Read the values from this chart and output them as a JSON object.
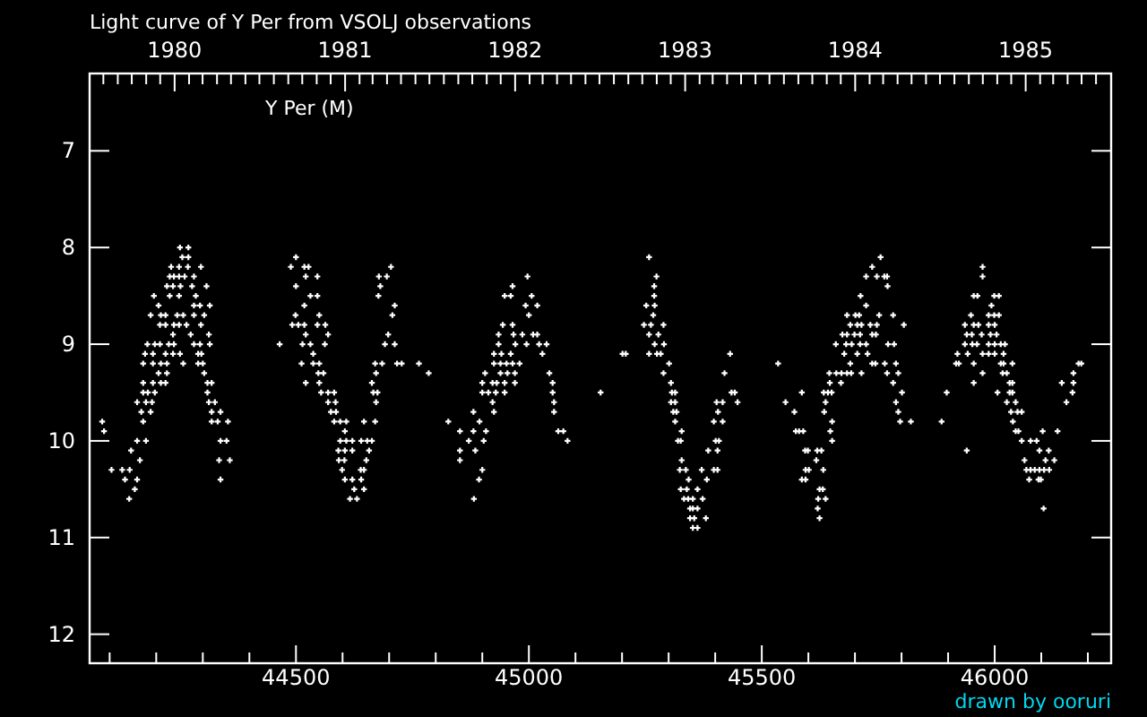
{
  "chart_data": {
    "type": "scatter",
    "title": "Light curve of Y Per from VSOLJ observations",
    "annotations": [
      "drawn by ooruri"
    ],
    "xlim": [
      44057,
      46250
    ],
    "xticks": [
      {
        "value": 44100,
        "label": null
      },
      {
        "value": 44200,
        "label": null
      },
      {
        "value": 44300,
        "label": null
      },
      {
        "value": 44400,
        "label": null
      },
      44500,
      {
        "value": 44600,
        "label": null
      },
      {
        "value": 44700,
        "label": null
      },
      {
        "value": 44800,
        "label": null
      },
      {
        "value": 44900,
        "label": null
      },
      45000,
      {
        "value": 45100,
        "label": null
      },
      {
        "value": 45200,
        "label": null
      },
      {
        "value": 45300,
        "label": null
      },
      {
        "value": 45400,
        "label": null
      },
      45500,
      {
        "value": 45600,
        "label": null
      },
      {
        "value": 45700,
        "label": null
      },
      {
        "value": 45800,
        "label": null
      },
      {
        "value": 45900,
        "label": null
      },
      46000,
      {
        "value": 46100,
        "label": null
      },
      {
        "value": 46200,
        "label": null
      }
    ],
    "x2lim": [
      "1979-07-02T12:00",
      "1985-07-03T12:00"
    ],
    "x2ticks": [
      {
        "value": "1979-08",
        "label": null
      },
      {
        "value": "1979-09",
        "label": null
      },
      {
        "value": "1979-10",
        "label": null
      },
      {
        "value": "1979-11",
        "label": null
      },
      {
        "value": "1979-12",
        "label": null
      },
      "1980",
      {
        "value": "1980-02",
        "label": null
      },
      {
        "value": "1980-03",
        "label": null
      },
      {
        "value": "1980-04",
        "label": null
      },
      {
        "value": "1980-05",
        "label": null
      },
      {
        "value": "1980-06",
        "label": null
      },
      {
        "value": "1980-07",
        "label": null
      },
      {
        "value": "1980-08",
        "label": null
      },
      {
        "value": "1980-09",
        "label": null
      },
      {
        "value": "1980-10",
        "label": null
      },
      {
        "value": "1980-11",
        "label": null
      },
      {
        "value": "1980-12",
        "label": null
      },
      "1981",
      {
        "value": "1981-02",
        "label": null
      },
      {
        "value": "1981-03",
        "label": null
      },
      {
        "value": "1981-04",
        "label": null
      },
      {
        "value": "1981-05",
        "label": null
      },
      {
        "value": "1981-06",
        "label": null
      },
      {
        "value": "1981-07",
        "label": null
      },
      {
        "value": "1981-08",
        "label": null
      },
      {
        "value": "1981-09",
        "label": null
      },
      {
        "value": "1981-10",
        "label": null
      },
      {
        "value": "1981-11",
        "label": null
      },
      {
        "value": "1981-12",
        "label": null
      },
      "1982",
      {
        "value": "1982-02",
        "label": null
      },
      {
        "value": "1982-03",
        "label": null
      },
      {
        "value": "1982-04",
        "label": null
      },
      {
        "value": "1982-05",
        "label": null
      },
      {
        "value": "1982-06",
        "label": null
      },
      {
        "value": "1982-07",
        "label": null
      },
      {
        "value": "1982-08",
        "label": null
      },
      {
        "value": "1982-09",
        "label": null
      },
      {
        "value": "1982-10",
        "label": null
      },
      {
        "value": "1982-11",
        "label": null
      },
      {
        "value": "1982-12",
        "label": null
      },
      "1983",
      {
        "value": "1983-02",
        "label": null
      },
      {
        "value": "1983-03",
        "label": null
      },
      {
        "value": "1983-04",
        "label": null
      },
      {
        "value": "1983-05",
        "label": null
      },
      {
        "value": "1983-06",
        "label": null
      },
      {
        "value": "1983-07",
        "label": null
      },
      {
        "value": "1983-08",
        "label": null
      },
      {
        "value": "1983-09",
        "label": null
      },
      {
        "value": "1983-10",
        "label": null
      },
      {
        "value": "1983-11",
        "label": null
      },
      {
        "value": "1983-12",
        "label": null
      },
      "1984",
      {
        "value": "1984-02",
        "label": null
      },
      {
        "value": "1984-03",
        "label": null
      },
      {
        "value": "1984-04",
        "label": null
      },
      {
        "value": "1984-05",
        "label": null
      },
      {
        "value": "1984-06",
        "label": null
      },
      {
        "value": "1984-07",
        "label": null
      },
      {
        "value": "1984-08",
        "label": null
      },
      {
        "value": "1984-09",
        "label": null
      },
      {
        "value": "1984-10",
        "label": null
      },
      {
        "value": "1984-11",
        "label": null
      },
      {
        "value": "1984-12",
        "label": null
      },
      "1985",
      {
        "value": "1985-02",
        "label": null
      },
      {
        "value": "1985-03",
        "label": null
      },
      {
        "value": "1985-04",
        "label": null
      },
      {
        "value": "1985-05",
        "label": null
      },
      {
        "value": "1985-06",
        "label": null
      }
    ],
    "ylim": [
      12.3,
      6.2
    ],
    "yticks": [
      7,
      8,
      9,
      10,
      11,
      12
    ],
    "marker": "cross",
    "legend": "top left",
    "series": [
      {
        "name": "Y Per (M)",
        "color": "#ffffff",
        "x": [
          44251,
          44269,
          44256,
          44269,
          44500,
          45258,
          45755,
          44232,
          44249,
          44268,
          44296,
          44489,
          44518,
          44527,
          44704,
          45737,
          45974,
          44229,
          44238,
          44249,
          44261,
          44281,
          44521,
          44546,
          44678,
          44695,
          44997,
          45274,
          45724,
          45747,
          45763,
          45769,
          45974,
          44223,
          44236,
          44252,
          44277,
          44308,
          44500,
          44681,
          44965,
          45269,
          45770,
          44195,
          44229,
          44249,
          44285,
          44531,
          44546,
          44677,
          44948,
          44961,
          45006,
          45269,
          45712,
          45955,
          45963,
          45999,
          46009,
          44205,
          44281,
          44294,
          44315,
          44518,
          44712,
          44993,
          45018,
          45252,
          45270,
          45724,
          45993,
          44188,
          44210,
          44220,
          44245,
          44258,
          44281,
          44303,
          44499,
          44550,
          44707,
          45000,
          45267,
          45683,
          45701,
          45709,
          45752,
          45782,
          45949,
          45987,
          45999,
          46009,
          44208,
          44220,
          44238,
          44249,
          44265,
          44296,
          44492,
          44505,
          44518,
          44546,
          44563,
          44944,
          44965,
          45247,
          45262,
          45289,
          45690,
          45705,
          45714,
          45733,
          45747,
          45805,
          45936,
          45955,
          45965,
          45987,
          46000,
          44236,
          44274,
          44313,
          44521,
          44569,
          44698,
          44935,
          44967,
          44986,
          45009,
          45018,
          45258,
          45278,
          45673,
          45683,
          45699,
          45711,
          45737,
          45745,
          45940,
          45951,
          45972,
          45991,
          46004,
          44181,
          44197,
          44208,
          44227,
          44238,
          44281,
          44294,
          44315,
          44465,
          44514,
          44531,
          44562,
          44691,
          44712,
          44935,
          44971,
          44995,
          45022,
          45038,
          45270,
          45290,
          45659,
          45681,
          45693,
          45711,
          45724,
          45771,
          45784,
          45936,
          45952,
          45962,
          45987,
          46000,
          46013,
          46022,
          44176,
          44193,
          44220,
          44236,
          44251,
          44290,
          44297,
          44537,
          44925,
          44941,
          44961,
          45029,
          45201,
          45208,
          45258,
          45275,
          45283,
          45432,
          45677,
          45705,
          45727,
          45920,
          45942,
          45974,
          45987,
          46000,
          46019,
          44172,
          44193,
          44210,
          44223,
          44258,
          44290,
          44300,
          44512,
          44537,
          44550,
          44670,
          44685,
          44717,
          44727,
          44764,
          44925,
          44939,
          44952,
          44965,
          44980,
          45301,
          45535,
          45690,
          45737,
          45744,
          45764,
          45788,
          45917,
          45923,
          45955,
          46013,
          46019,
          46038,
          46180,
          46186,
          44205,
          44223,
          44303,
          44548,
          44559,
          44672,
          44785,
          44906,
          44939,
          44954,
          44970,
          45044,
          45289,
          45420,
          45645,
          45660,
          45671,
          45683,
          45692,
          45714,
          45769,
          45793,
          45974,
          46017,
          46026,
          46169,
          44172,
          44193,
          44210,
          44220,
          44310,
          44319,
          44521,
          44550,
          44663,
          44900,
          44922,
          44931,
          44948,
          44970,
          45051,
          45305,
          45646,
          45670,
          45782,
          45955,
          46032,
          46038,
          46144,
          46169,
          44172,
          44182,
          44197,
          44310,
          44554,
          44569,
          44582,
          44666,
          44675,
          44900,
          44913,
          44929,
          44948,
          45051,
          45154,
          45307,
          45314,
          45435,
          45442,
          45586,
          45633,
          45642,
          45650,
          45801,
          45897,
          46006,
          46032,
          46038,
          46167,
          44159,
          44178,
          44191,
          44313,
          44326,
          44569,
          44585,
          44672,
          44922,
          45054,
          45305,
          45314,
          45403,
          45416,
          45448,
          45551,
          45637,
          45788,
          46026,
          46045,
          46154,
          44168,
          44188,
          44319,
          44338,
          44575,
          44586,
          44881,
          44925,
          45054,
          45310,
          45317,
          45406,
          45570,
          45634,
          45793,
          46035,
          46049,
          46058,
          44084,
          44172,
          44319,
          44332,
          44354,
          44582,
          44595,
          44608,
          44646,
          44670,
          44827,
          44894,
          45314,
          45397,
          45416,
          45651,
          45797,
          45820,
          45886,
          46039,
          44088,
          44605,
          44852,
          44881,
          44908,
          45063,
          45074,
          45328,
          45573,
          45580,
          45589,
          45647,
          46045,
          46051,
          46103,
          46135,
          44159,
          44178,
          44338,
          44351,
          44595,
          44608,
          44621,
          44640,
          44653,
          44663,
          44871,
          44903,
          45083,
          45320,
          45326,
          45401,
          45408,
          45651,
          46058,
          46077,
          46090,
          44146,
          44591,
          44605,
          44621,
          44657,
          44852,
          44885,
          45385,
          45405,
          45593,
          45599,
          45619,
          45628,
          45940,
          46096,
          46116,
          44165,
          44335,
          44358,
          44592,
          44604,
          44651,
          44852,
          45328,
          45617,
          46064,
          46109,
          46128,
          44104,
          44127,
          44143,
          44599,
          44639,
          44646,
          44900,
          45324,
          45337,
          45371,
          45397,
          45405,
          45594,
          45601,
          45632,
          46068,
          46077,
          46086,
          46096,
          46106,
          46117,
          44133,
          44159,
          44338,
          44605,
          44621,
          44640,
          44893,
          45343,
          45382,
          45586,
          45594,
          46074,
          46094,
          46099,
          44154,
          44625,
          44646,
          45326,
          45339,
          45362,
          45624,
          45631,
          44142,
          44616,
          44631,
          44882,
          45333,
          45342,
          45352,
          45373,
          45621,
          45637,
          45346,
          45352,
          45362,
          45620,
          46105,
          45346,
          45355,
          45380,
          45624,
          45352,
          45362
        ],
        "values": [
          8,
          8,
          8.1,
          8.1,
          8.1,
          8.1,
          8.1,
          8.2,
          8.2,
          8.2,
          8.2,
          8.2,
          8.2,
          8.2,
          8.2,
          8.2,
          8.2,
          8.3,
          8.3,
          8.3,
          8.3,
          8.3,
          8.3,
          8.3,
          8.3,
          8.3,
          8.3,
          8.3,
          8.3,
          8.3,
          8.3,
          8.3,
          8.3,
          8.4,
          8.4,
          8.4,
          8.4,
          8.4,
          8.4,
          8.4,
          8.4,
          8.4,
          8.4,
          8.5,
          8.5,
          8.5,
          8.5,
          8.5,
          8.5,
          8.5,
          8.5,
          8.5,
          8.5,
          8.5,
          8.5,
          8.5,
          8.5,
          8.5,
          8.5,
          8.6,
          8.6,
          8.6,
          8.6,
          8.6,
          8.6,
          8.6,
          8.6,
          8.6,
          8.6,
          8.6,
          8.6,
          8.7,
          8.7,
          8.7,
          8.7,
          8.7,
          8.7,
          8.7,
          8.7,
          8.7,
          8.7,
          8.7,
          8.7,
          8.7,
          8.7,
          8.7,
          8.7,
          8.7,
          8.7,
          8.7,
          8.7,
          8.7,
          8.8,
          8.8,
          8.8,
          8.8,
          8.8,
          8.8,
          8.8,
          8.8,
          8.8,
          8.8,
          8.8,
          8.8,
          8.8,
          8.8,
          8.8,
          8.8,
          8.8,
          8.8,
          8.8,
          8.8,
          8.8,
          8.8,
          8.8,
          8.8,
          8.8,
          8.8,
          8.8,
          8.9,
          8.9,
          8.9,
          8.9,
          8.9,
          8.9,
          8.9,
          8.9,
          8.9,
          8.9,
          8.9,
          8.9,
          8.9,
          8.9,
          8.9,
          8.9,
          8.9,
          8.9,
          8.9,
          8.9,
          8.9,
          8.9,
          8.9,
          8.9,
          9,
          9,
          9,
          9,
          9,
          9,
          9,
          9,
          9,
          9,
          9,
          9,
          9,
          9,
          9,
          9,
          9,
          9,
          9,
          9,
          9,
          9,
          9,
          9,
          9,
          9,
          9,
          9,
          9,
          9,
          9,
          9,
          9,
          9,
          9,
          9.1,
          9.1,
          9.1,
          9.1,
          9.1,
          9.1,
          9.1,
          9.1,
          9.1,
          9.1,
          9.1,
          9.1,
          9.1,
          9.1,
          9.1,
          9.1,
          9.1,
          9.1,
          9.1,
          9.1,
          9.1,
          9.1,
          9.1,
          9.1,
          9.1,
          9.1,
          9.1,
          9.2,
          9.2,
          9.2,
          9.2,
          9.2,
          9.2,
          9.2,
          9.2,
          9.2,
          9.2,
          9.2,
          9.2,
          9.2,
          9.2,
          9.2,
          9.2,
          9.2,
          9.2,
          9.2,
          9.2,
          9.2,
          9.2,
          9.2,
          9.2,
          9.2,
          9.2,
          9.2,
          9.2,
          9.2,
          9.2,
          9.2,
          9.2,
          9.2,
          9.2,
          9.2,
          9.3,
          9.3,
          9.3,
          9.3,
          9.3,
          9.3,
          9.3,
          9.3,
          9.3,
          9.3,
          9.3,
          9.3,
          9.3,
          9.3,
          9.3,
          9.3,
          9.3,
          9.3,
          9.3,
          9.3,
          9.3,
          9.3,
          9.3,
          9.3,
          9.3,
          9.3,
          9.4,
          9.4,
          9.4,
          9.4,
          9.4,
          9.4,
          9.4,
          9.4,
          9.4,
          9.4,
          9.4,
          9.4,
          9.4,
          9.4,
          9.4,
          9.4,
          9.4,
          9.4,
          9.4,
          9.4,
          9.4,
          9.4,
          9.4,
          9.4,
          9.5,
          9.5,
          9.5,
          9.5,
          9.5,
          9.5,
          9.5,
          9.5,
          9.5,
          9.5,
          9.5,
          9.5,
          9.5,
          9.5,
          9.5,
          9.5,
          9.5,
          9.5,
          9.5,
          9.5,
          9.5,
          9.5,
          9.5,
          9.5,
          9.5,
          9.5,
          9.5,
          9.5,
          9.5,
          9.6,
          9.6,
          9.6,
          9.6,
          9.6,
          9.6,
          9.6,
          9.6,
          9.6,
          9.6,
          9.6,
          9.6,
          9.6,
          9.6,
          9.6,
          9.6,
          9.6,
          9.6,
          9.6,
          9.6,
          9.6,
          9.7,
          9.7,
          9.7,
          9.7,
          9.7,
          9.7,
          9.7,
          9.7,
          9.7,
          9.7,
          9.7,
          9.7,
          9.7,
          9.7,
          9.7,
          9.7,
          9.7,
          9.7,
          9.8,
          9.8,
          9.8,
          9.8,
          9.8,
          9.8,
          9.8,
          9.8,
          9.8,
          9.8,
          9.8,
          9.8,
          9.8,
          9.8,
          9.8,
          9.8,
          9.8,
          9.8,
          9.8,
          9.8,
          9.9,
          9.9,
          9.9,
          9.9,
          9.9,
          9.9,
          9.9,
          9.9,
          9.9,
          9.9,
          9.9,
          9.9,
          9.9,
          9.9,
          9.9,
          9.9,
          10,
          10,
          10,
          10,
          10,
          10,
          10,
          10,
          10,
          10,
          10,
          10,
          10,
          10,
          10,
          10,
          10,
          10,
          10,
          10,
          10,
          10.1,
          10.1,
          10.1,
          10.1,
          10.1,
          10.1,
          10.1,
          10.1,
          10.1,
          10.1,
          10.1,
          10.1,
          10.1,
          10.1,
          10.1,
          10.1,
          10.2,
          10.2,
          10.2,
          10.2,
          10.2,
          10.2,
          10.2,
          10.2,
          10.2,
          10.2,
          10.2,
          10.2,
          10.3,
          10.3,
          10.3,
          10.3,
          10.3,
          10.3,
          10.3,
          10.3,
          10.3,
          10.3,
          10.3,
          10.3,
          10.3,
          10.3,
          10.3,
          10.3,
          10.3,
          10.3,
          10.3,
          10.3,
          10.3,
          10.4,
          10.4,
          10.4,
          10.4,
          10.4,
          10.4,
          10.4,
          10.4,
          10.4,
          10.4,
          10.4,
          10.4,
          10.4,
          10.4,
          10.5,
          10.5,
          10.5,
          10.5,
          10.5,
          10.5,
          10.5,
          10.5,
          10.6,
          10.6,
          10.6,
          10.6,
          10.6,
          10.6,
          10.6,
          10.6,
          10.6,
          10.6,
          10.7,
          10.7,
          10.7,
          10.7,
          10.7,
          10.8,
          10.8,
          10.8,
          10.8,
          10.9,
          10.9
        ]
      }
    ]
  }
}
